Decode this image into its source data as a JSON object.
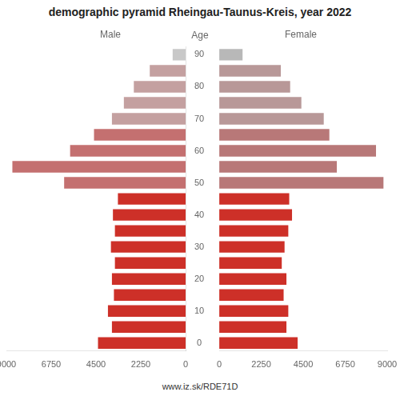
{
  "chart_data": {
    "type": "bar",
    "title": "demographic pyramid Rheingau-Taunus-Kreis, year 2022",
    "footer": "www.iz.sk/RDE71D",
    "y_label": "Age",
    "orientation": "horizontal",
    "categories": [
      "0",
      null,
      "10",
      null,
      "20",
      null,
      "30",
      null,
      "40",
      null,
      "50",
      null,
      "60",
      null,
      "70",
      null,
      "80",
      null,
      "90"
    ],
    "series": [
      {
        "name": "Male",
        "colors": [
          "#cd3028",
          "#cd3028",
          "#cd3028",
          "#cd3028",
          "#cd3028",
          "#cd3028",
          "#cd3028",
          "#cd3028",
          "#cd3028",
          "#cd3028",
          "#c47070",
          "#c47070",
          "#c47070",
          "#c47070",
          "#c4a0a0",
          "#c4a0a0",
          "#c4a0a0",
          "#c4a0a0",
          "#c8c8c8"
        ],
        "values": [
          4400,
          3700,
          3900,
          3600,
          3700,
          3550,
          3750,
          3550,
          3650,
          3400,
          6100,
          8700,
          5800,
          4600,
          3700,
          3100,
          2600,
          1800,
          650
        ]
      },
      {
        "name": "Female",
        "colors": [
          "#cd3028",
          "#cd3028",
          "#cd3028",
          "#cd3028",
          "#cd3028",
          "#cd3028",
          "#cd3028",
          "#cd3028",
          "#cd3028",
          "#cd3028",
          "#b87878",
          "#b87878",
          "#b87878",
          "#b87878",
          "#b89898",
          "#b89898",
          "#b89898",
          "#b89898",
          "#b8b8b8"
        ],
        "values": [
          4200,
          3600,
          3700,
          3450,
          3600,
          3350,
          3500,
          3700,
          3900,
          3750,
          8800,
          6300,
          8400,
          5900,
          5600,
          4400,
          3800,
          3300,
          1250
        ]
      }
    ],
    "xlim": [
      0,
      9000
    ],
    "xticks": [
      0,
      2250,
      4500,
      6750,
      9000
    ],
    "grid": false
  }
}
